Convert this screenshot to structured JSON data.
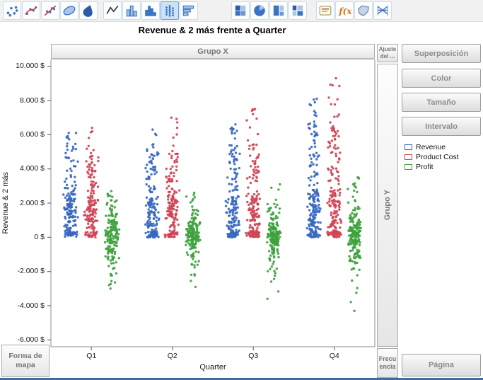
{
  "title": "Revenue & 2 más frente a Quarter",
  "toolbar": {
    "selected_index": 8,
    "icons": [
      {
        "name": "points"
      },
      {
        "name": "smoother"
      },
      {
        "name": "line-of-fit"
      },
      {
        "name": "ellipse"
      },
      {
        "name": "contour"
      },
      {
        "name": "line"
      },
      {
        "name": "bar"
      },
      {
        "name": "histogram"
      },
      {
        "name": "strip-points"
      },
      {
        "name": "pareto"
      },
      {
        "name": "heatmap"
      },
      {
        "name": "pie"
      },
      {
        "name": "treemap"
      },
      {
        "name": "mosaic"
      },
      {
        "name": "caption-box"
      },
      {
        "name": "formula"
      },
      {
        "name": "map-shapes"
      },
      {
        "name": "parallel-plot"
      }
    ]
  },
  "zones": {
    "group_x": "Grupo X",
    "group_y": "Grupo Y",
    "wrap": "Ajuste del ...",
    "frequency": "Frecuencia",
    "map_shape": "Forma de mapa",
    "overlay": "Superposición",
    "color": "Color",
    "size": "Tamaño",
    "interval": "Intervalo",
    "page": "Página"
  },
  "chart_data": {
    "type": "scatter",
    "variant": "jittered-points-by-category",
    "title": "Revenue & 2 más frente a Quarter",
    "xlabel": "Quarter",
    "ylabel": "Revenue & 2 más",
    "categories": [
      "Q1",
      "Q2",
      "Q3",
      "Q4"
    ],
    "ylim": [
      -6400,
      10400
    ],
    "grid": false,
    "legend_position": "right",
    "yticks": [
      {
        "value": 10000,
        "label": "10.000 $"
      },
      {
        "value": 8000,
        "label": "8.000 $"
      },
      {
        "value": 6000,
        "label": "6.000 $"
      },
      {
        "value": 4000,
        "label": "4.000 $"
      },
      {
        "value": 2000,
        "label": "2.000 $"
      },
      {
        "value": 0,
        "label": "0 $"
      },
      {
        "value": -2000,
        "label": "-2.000 $"
      },
      {
        "value": -4000,
        "label": "-4.000 $"
      },
      {
        "value": -6000,
        "label": "-6.000 $"
      }
    ],
    "series": [
      {
        "name": "Revenue",
        "color": "#3767c0",
        "distribution": "dense-at-zero-with-upper-tail",
        "groups": [
          {
            "category": "Q1",
            "n": 170,
            "dense_max": 2300,
            "mid_max": 4700,
            "max": 6100,
            "min": 0
          },
          {
            "category": "Q2",
            "n": 170,
            "dense_max": 2300,
            "mid_max": 5000,
            "max": 6300,
            "min": 0
          },
          {
            "category": "Q3",
            "n": 170,
            "dense_max": 2400,
            "mid_max": 5400,
            "max": 6600,
            "min": 0
          },
          {
            "category": "Q4",
            "n": 190,
            "dense_max": 2800,
            "mid_max": 6400,
            "max": 8100,
            "min": 0
          }
        ]
      },
      {
        "name": "Product Cost",
        "color": "#cf4456",
        "distribution": "dense-at-zero-with-upper-tail",
        "groups": [
          {
            "category": "Q1",
            "n": 170,
            "dense_max": 2200,
            "mid_max": 4600,
            "max": 6400,
            "min": 0
          },
          {
            "category": "Q2",
            "n": 170,
            "dense_max": 2300,
            "mid_max": 5000,
            "max": 7000,
            "min": 0
          },
          {
            "category": "Q3",
            "n": 170,
            "dense_max": 2400,
            "mid_max": 5500,
            "max": 7500,
            "min": 0
          },
          {
            "category": "Q4",
            "n": 190,
            "dense_max": 2800,
            "mid_max": 6600,
            "max": 9300,
            "min": 0
          }
        ]
      },
      {
        "name": "Profit",
        "color": "#3da23d",
        "distribution": "centered-near-zero-both-tails",
        "groups": [
          {
            "category": "Q1",
            "n": 170,
            "center": 120,
            "scale": 750,
            "min": -3000,
            "max": 2700
          },
          {
            "category": "Q2",
            "n": 170,
            "center": 120,
            "scale": 760,
            "min": -2900,
            "max": 2600
          },
          {
            "category": "Q3",
            "n": 170,
            "center": 130,
            "scale": 800,
            "min": -3600,
            "max": 3100
          },
          {
            "category": "Q4",
            "n": 190,
            "center": 150,
            "scale": 860,
            "min": -4300,
            "max": 3500
          }
        ]
      }
    ]
  }
}
